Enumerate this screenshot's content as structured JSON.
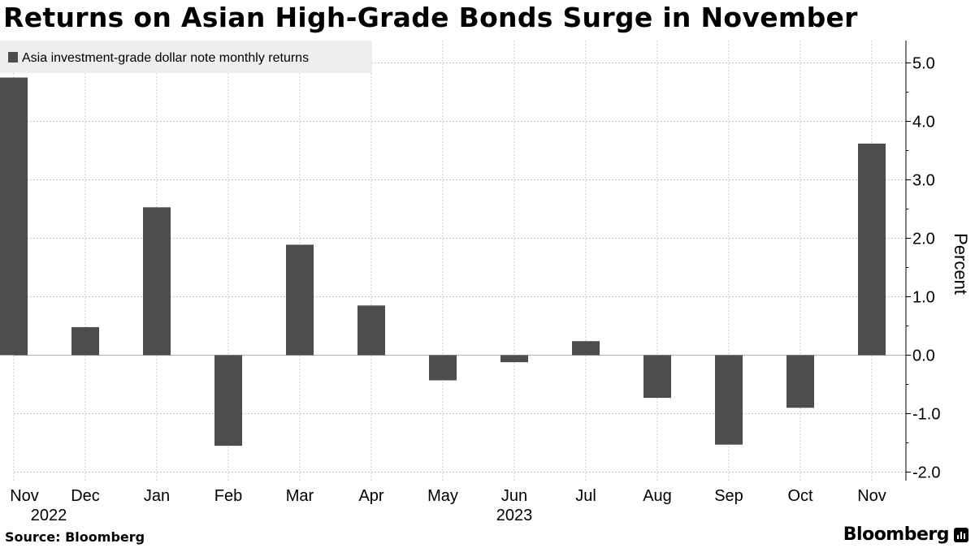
{
  "title": "Returns on Asian High-Grade Bonds Surge in November",
  "source": "Source: Bloomberg",
  "brand": "Bloomberg",
  "colors": {
    "bar": "#4d4d4d",
    "grid": "#c8c8c8",
    "zero_line": "#b0b0b0",
    "legend_bg": "#eeeeee",
    "axis": "#000000"
  },
  "chart_data": {
    "type": "bar",
    "categories": [
      "Nov",
      "Dec",
      "Jan",
      "Feb",
      "Mar",
      "Apr",
      "May",
      "Jun",
      "Jul",
      "Aug",
      "Sep",
      "Oct",
      "Nov"
    ],
    "year_labels": [
      {
        "index": 0,
        "label": "2022"
      },
      {
        "index": 7,
        "label": "2023"
      }
    ],
    "series": [
      {
        "name": "Asia investment-grade dollar note monthly returns",
        "values": [
          4.75,
          0.48,
          2.53,
          -1.55,
          1.89,
          0.85,
          -0.43,
          -0.12,
          0.24,
          -0.73,
          -1.53,
          -0.9,
          3.62
        ]
      }
    ],
    "ylabel": "Percent",
    "ylim": [
      -2.0,
      5.0
    ],
    "yticks": [
      -2.0,
      -1.0,
      0.0,
      1.0,
      2.0,
      3.0,
      4.0,
      5.0
    ],
    "ytick_labels": [
      "-2.0",
      "-1.0",
      "0.0",
      "1.0",
      "2.0",
      "3.0",
      "4.0",
      "5.0"
    ],
    "y_axis_side": "right",
    "grid": true,
    "legend_position": "top-left"
  }
}
